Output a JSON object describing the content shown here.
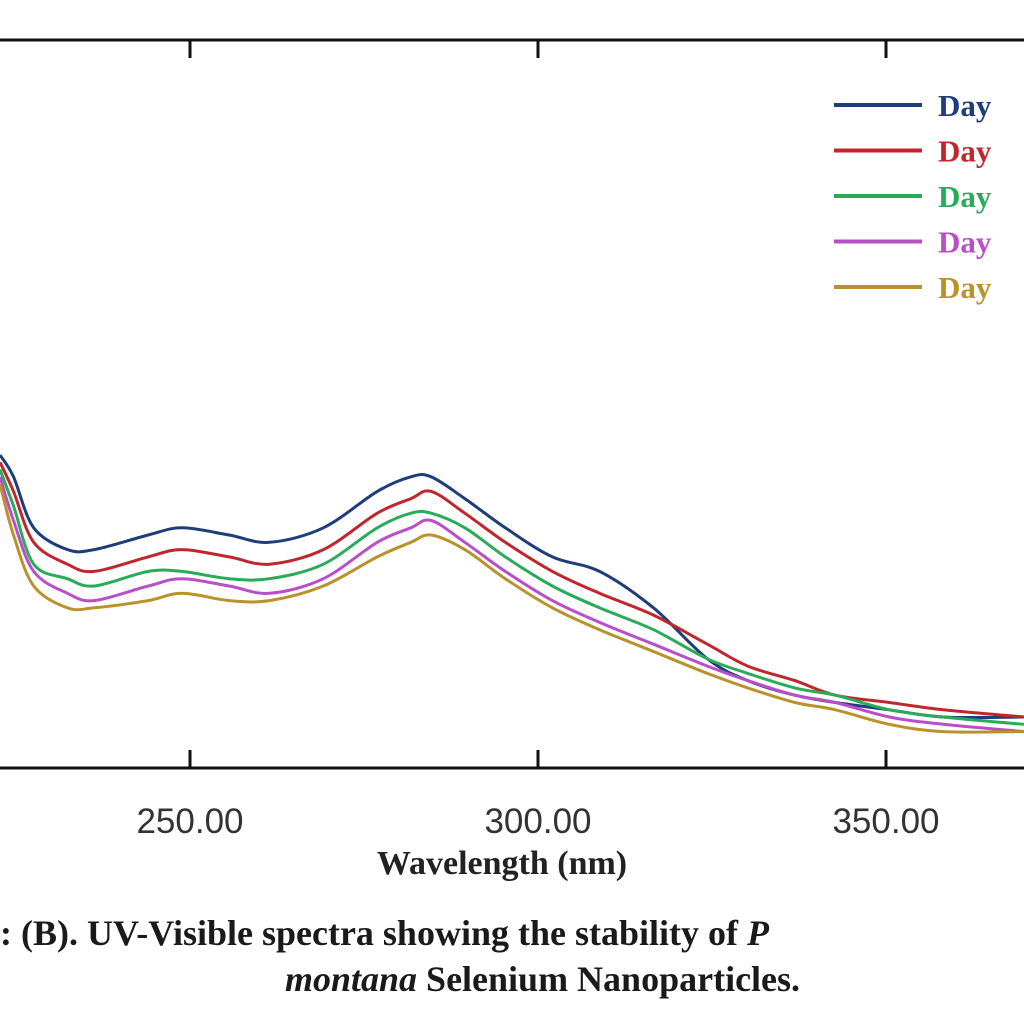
{
  "chart_data": {
    "type": "line",
    "xlabel": "Wavelength (nm)",
    "ylabel": "",
    "x_ticks": [
      "250.00",
      "300.00",
      "350.00"
    ],
    "xlim": [
      222,
      374
    ],
    "ylim": [
      0,
      100
    ],
    "grid": false,
    "legend_position": "top-right",
    "series": [
      {
        "name": "Day",
        "color": "#1f3d7a",
        "points": [
          [
            222,
            43
          ],
          [
            224,
            40
          ],
          [
            227,
            33
          ],
          [
            232,
            30
          ],
          [
            236,
            30
          ],
          [
            244,
            32
          ],
          [
            249,
            33
          ],
          [
            256,
            32
          ],
          [
            262,
            31
          ],
          [
            270,
            33
          ],
          [
            278,
            38
          ],
          [
            283,
            40
          ],
          [
            286,
            40
          ],
          [
            291,
            37
          ],
          [
            297,
            33
          ],
          [
            304,
            29
          ],
          [
            311,
            27
          ],
          [
            319,
            22
          ],
          [
            327,
            15
          ],
          [
            333,
            12
          ],
          [
            340,
            10
          ],
          [
            346,
            9
          ],
          [
            354,
            8
          ],
          [
            362,
            7
          ],
          [
            374,
            7
          ]
        ]
      },
      {
        "name": "Day",
        "color": "#c0272d",
        "points": [
          [
            222,
            42
          ],
          [
            224,
            38
          ],
          [
            227,
            31
          ],
          [
            232,
            28
          ],
          [
            236,
            27
          ],
          [
            244,
            29
          ],
          [
            249,
            30
          ],
          [
            256,
            29
          ],
          [
            262,
            28
          ],
          [
            270,
            30
          ],
          [
            278,
            35
          ],
          [
            283,
            37
          ],
          [
            286,
            38
          ],
          [
            291,
            35
          ],
          [
            297,
            31
          ],
          [
            304,
            27
          ],
          [
            311,
            24
          ],
          [
            319,
            21
          ],
          [
            327,
            17
          ],
          [
            333,
            14
          ],
          [
            340,
            12
          ],
          [
            346,
            10
          ],
          [
            354,
            9
          ],
          [
            362,
            8
          ],
          [
            374,
            7
          ]
        ]
      },
      {
        "name": "Day",
        "color": "#2bab5a",
        "points": [
          [
            222,
            41
          ],
          [
            224,
            36
          ],
          [
            227,
            28
          ],
          [
            232,
            26
          ],
          [
            236,
            25
          ],
          [
            244,
            27
          ],
          [
            249,
            27
          ],
          [
            256,
            26
          ],
          [
            262,
            26
          ],
          [
            270,
            28
          ],
          [
            278,
            33
          ],
          [
            283,
            35
          ],
          [
            286,
            35
          ],
          [
            291,
            33
          ],
          [
            297,
            29
          ],
          [
            304,
            25
          ],
          [
            311,
            22
          ],
          [
            319,
            19
          ],
          [
            327,
            15
          ],
          [
            333,
            13
          ],
          [
            340,
            11
          ],
          [
            346,
            10
          ],
          [
            354,
            8
          ],
          [
            362,
            7
          ],
          [
            374,
            6
          ]
        ]
      },
      {
        "name": "Day",
        "color": "#b84fc9",
        "points": [
          [
            222,
            40
          ],
          [
            224,
            34
          ],
          [
            227,
            27
          ],
          [
            232,
            24
          ],
          [
            236,
            23
          ],
          [
            244,
            25
          ],
          [
            249,
            26
          ],
          [
            256,
            25
          ],
          [
            262,
            24
          ],
          [
            270,
            26
          ],
          [
            278,
            31
          ],
          [
            283,
            33
          ],
          [
            286,
            34
          ],
          [
            291,
            31
          ],
          [
            297,
            27
          ],
          [
            304,
            23
          ],
          [
            311,
            20
          ],
          [
            319,
            17
          ],
          [
            327,
            14
          ],
          [
            333,
            12
          ],
          [
            340,
            10
          ],
          [
            346,
            9
          ],
          [
            354,
            7
          ],
          [
            362,
            6
          ],
          [
            374,
            5
          ]
        ]
      },
      {
        "name": "Day",
        "color": "#b8922a",
        "points": [
          [
            222,
            39
          ],
          [
            224,
            32
          ],
          [
            227,
            25
          ],
          [
            232,
            22
          ],
          [
            236,
            22
          ],
          [
            244,
            23
          ],
          [
            249,
            24
          ],
          [
            256,
            23
          ],
          [
            262,
            23
          ],
          [
            270,
            25
          ],
          [
            278,
            29
          ],
          [
            283,
            31
          ],
          [
            286,
            32
          ],
          [
            291,
            30
          ],
          [
            297,
            26
          ],
          [
            304,
            22
          ],
          [
            311,
            19
          ],
          [
            319,
            16
          ],
          [
            327,
            13
          ],
          [
            333,
            11
          ],
          [
            340,
            9
          ],
          [
            346,
            8
          ],
          [
            354,
            6
          ],
          [
            362,
            5
          ],
          [
            374,
            5
          ]
        ]
      }
    ]
  },
  "caption": {
    "line1": ": (B). UV-Visible spectra showing the stability of ",
    "line1_tail": "P",
    "line2_italic": "montana",
    "line2": " Selenium Nanoparticles."
  }
}
